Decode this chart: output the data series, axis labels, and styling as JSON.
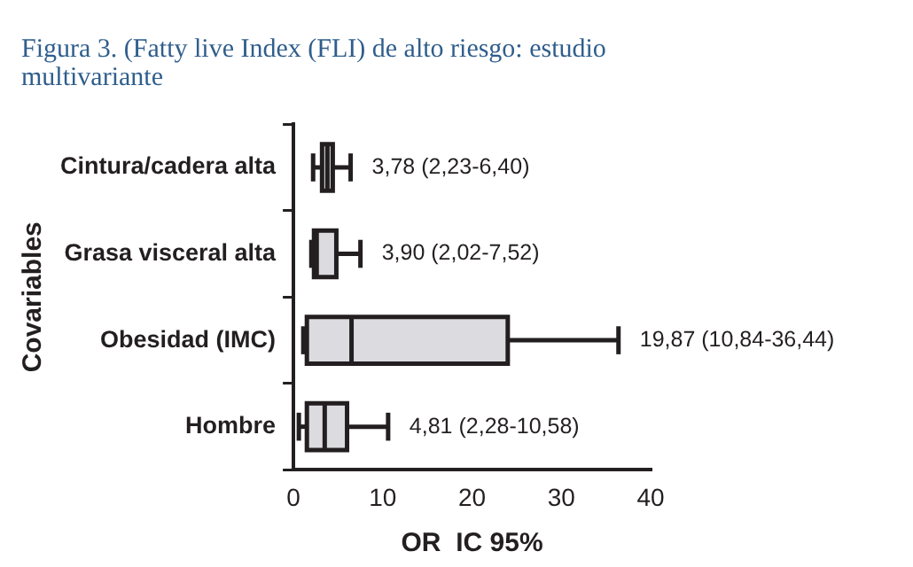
{
  "chart_data": {
    "type": "box",
    "orientation": "horizontal",
    "title": "Figura 3. (Fatty live Index (FLI) de alto riesgo: estudio multivariante",
    "xlabel": "OR  IC 95%",
    "ylabel": "Covariables",
    "categories": [
      "Cintura/cadera alta",
      "Grasa visceral alta",
      "Obesidad (IMC)",
      "Hombre"
    ],
    "boxes": [
      {
        "low": 2.2,
        "q1": 3.2,
        "median": 3.8,
        "q3": 4.4,
        "high": 6.4
      },
      {
        "low": 2.0,
        "q1": 2.3,
        "median": 2.6,
        "q3": 4.8,
        "high": 7.5
      },
      {
        "low": 1.1,
        "q1": 1.5,
        "median": 6.5,
        "q3": 24,
        "high": 36.4
      },
      {
        "low": 0.6,
        "q1": 1.5,
        "median": 3.5,
        "q3": 6,
        "high": 10.6
      }
    ],
    "color": "#dcdce0",
    "xlim": [
      0,
      40
    ],
    "xticks": [
      0,
      10,
      20,
      30,
      40
    ],
    "grid": false,
    "legend": false,
    "annotations": [
      {
        "text": "3,78 (2,23-6,40)",
        "x": 6.4,
        "y": "Cintura/cadera alta"
      },
      {
        "text": "3,90 (2,02-7,52)",
        "x": 7.5,
        "y": "Grasa visceral alta"
      },
      {
        "text": "19,87 (10,84-36,44)",
        "x": 36.4,
        "y": "Obesidad (IMC)"
      },
      {
        "text": "4,81 (2,28-10,58)",
        "x": 10.6,
        "y": "Hombre"
      }
    ]
  }
}
